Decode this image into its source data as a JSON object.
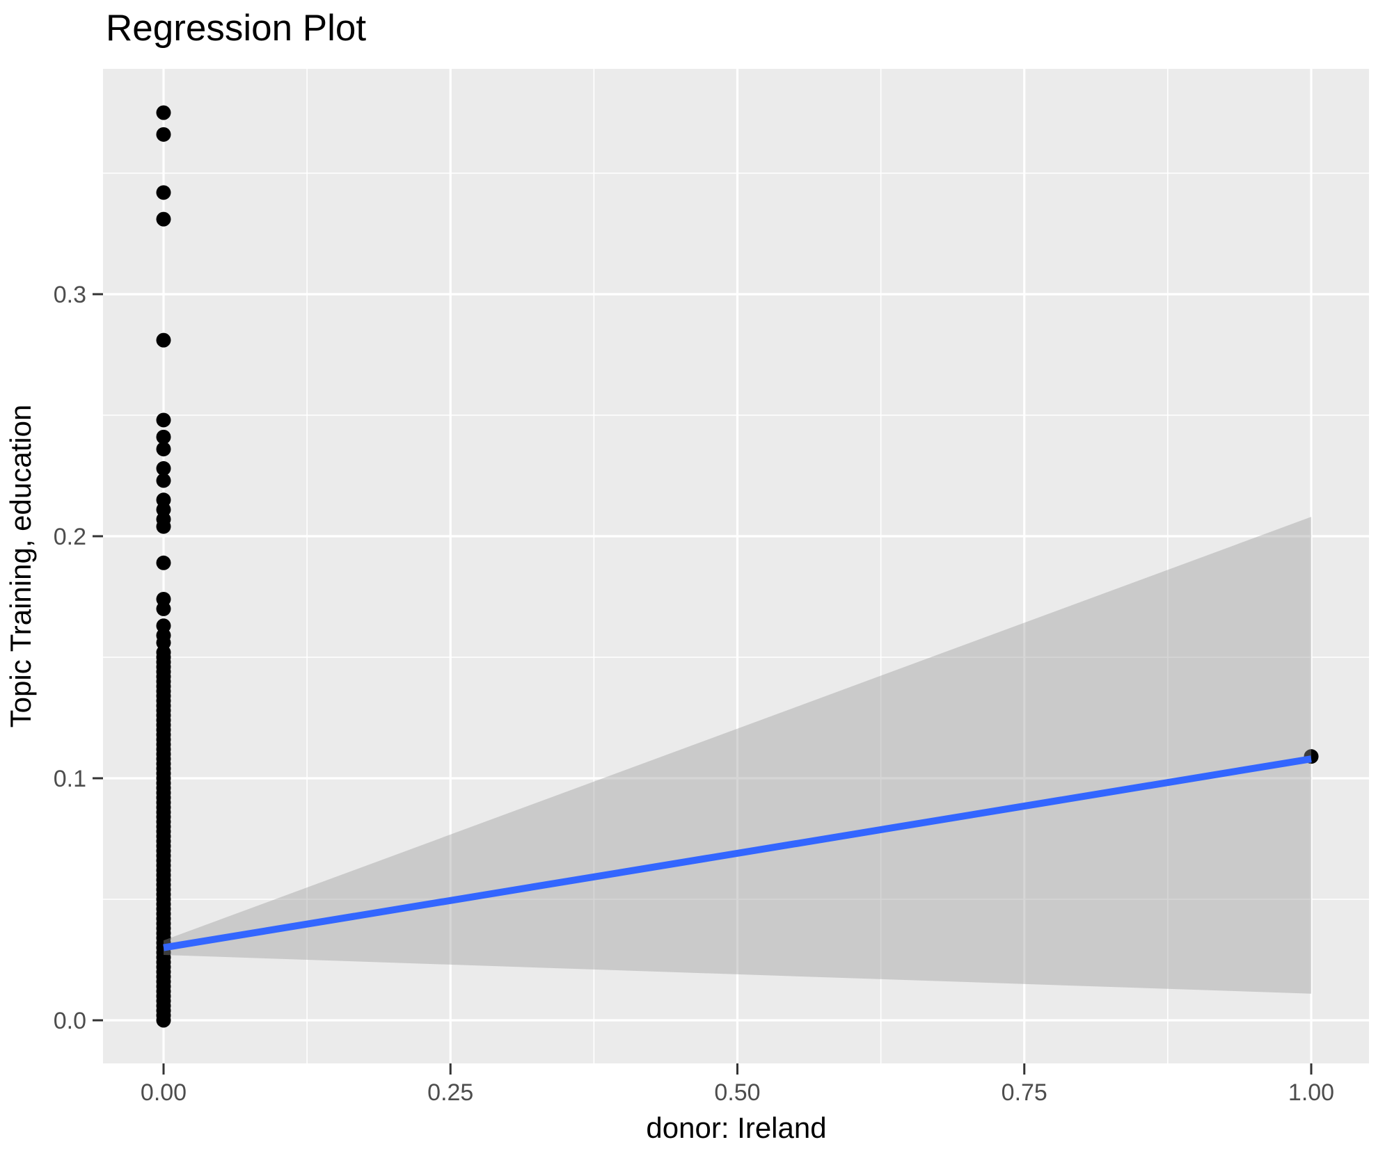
{
  "chart_data": {
    "type": "scatter",
    "title": "Regression Plot",
    "xlabel": "donor: Ireland",
    "ylabel": "Topic Training, education",
    "x_ticks": [
      "0.00",
      "0.25",
      "0.50",
      "0.75",
      "1.00"
    ],
    "x_tick_values": [
      0,
      0.25,
      0.5,
      0.75,
      1.0
    ],
    "x_minor_tick_values": [
      0.125,
      0.375,
      0.625,
      0.875
    ],
    "y_ticks": [
      "0.0",
      "0.1",
      "0.2",
      "0.3"
    ],
    "y_tick_values": [
      0,
      0.1,
      0.2,
      0.3
    ],
    "y_minor_tick_values": [
      0.05,
      0.15,
      0.25,
      0.35
    ],
    "xlim": [
      -0.053,
      1.053
    ],
    "ylim": [
      -0.018,
      0.394
    ],
    "grid": true,
    "legend": "none",
    "points": {
      "x0_values": [
        0.375,
        0.366,
        0.342,
        0.331,
        0.281,
        0.248,
        0.241,
        0.236,
        0.228,
        0.223,
        0.215,
        0.211,
        0.207,
        0.204,
        0.189,
        0.174,
        0.17,
        0.163,
        0.159,
        0.156,
        0.152,
        0.15,
        0.148,
        0.146,
        0.144,
        0.142,
        0.14,
        0.138,
        0.136,
        0.134,
        0.132,
        0.13,
        0.128,
        0.126,
        0.124,
        0.122,
        0.12,
        0.118,
        0.116,
        0.114,
        0.112,
        0.11,
        0.108,
        0.106,
        0.104,
        0.102,
        0.1,
        0.098,
        0.096,
        0.094,
        0.092,
        0.09,
        0.088,
        0.086,
        0.084,
        0.082,
        0.08,
        0.078,
        0.076,
        0.074,
        0.072,
        0.07,
        0.068,
        0.066,
        0.064,
        0.062,
        0.06,
        0.058,
        0.056,
        0.054,
        0.052,
        0.05,
        0.048,
        0.046,
        0.044,
        0.042,
        0.04,
        0.038,
        0.036,
        0.034,
        0.032,
        0.03,
        0.028,
        0.026,
        0.024,
        0.022,
        0.02,
        0.018,
        0.016,
        0.014,
        0.012,
        0.01,
        0.008,
        0.006,
        0.004,
        0.002,
        0.0
      ],
      "x1_values": [
        0.109
      ]
    },
    "regression_line": {
      "x": [
        0,
        1
      ],
      "y": [
        0.03,
        0.108
      ]
    },
    "confidence_band": {
      "x": [
        0,
        1
      ],
      "lower": [
        0.027,
        0.011
      ],
      "upper": [
        0.033,
        0.208
      ]
    },
    "colors": {
      "panel_bg": "#EBEBEB",
      "grid": "#FFFFFF",
      "point": "#000000",
      "line": "#3366FF",
      "band_fill": "#999999",
      "band_opacity": 0.4,
      "tick_mark": "#333333",
      "tick_label": "#4D4D4D"
    }
  }
}
